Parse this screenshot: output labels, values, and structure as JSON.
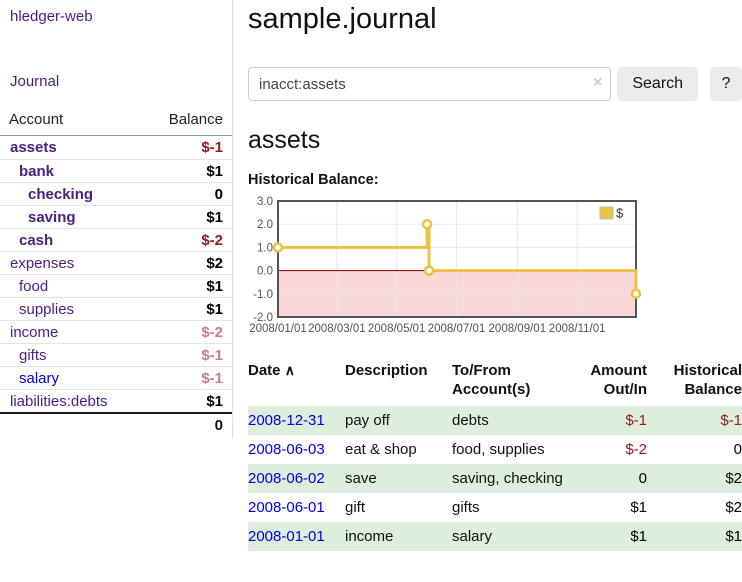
{
  "brand": "hledger-web",
  "nav": {
    "journal": "Journal"
  },
  "sidebar": {
    "header": {
      "account": "Account",
      "balance": "Balance"
    },
    "accounts": [
      {
        "name": "assets",
        "level": 0,
        "bold": true,
        "blue": false,
        "balance": "$-1",
        "tone": "neg"
      },
      {
        "name": "bank",
        "level": 1,
        "bold": true,
        "blue": false,
        "balance": "$1",
        "tone": ""
      },
      {
        "name": "checking",
        "level": 2,
        "bold": true,
        "blue": false,
        "balance": "0",
        "tone": ""
      },
      {
        "name": "saving",
        "level": 2,
        "bold": true,
        "blue": false,
        "balance": "$1",
        "tone": ""
      },
      {
        "name": "cash",
        "level": 1,
        "bold": true,
        "blue": false,
        "balance": "$-2",
        "tone": "neg"
      },
      {
        "name": "expenses",
        "level": 0,
        "bold": false,
        "blue": false,
        "balance": "$2",
        "tone": ""
      },
      {
        "name": "food",
        "level": 1,
        "bold": false,
        "blue": false,
        "balance": "$1",
        "tone": ""
      },
      {
        "name": "supplies",
        "level": 1,
        "bold": false,
        "blue": false,
        "balance": "$1",
        "tone": ""
      },
      {
        "name": "income",
        "level": 0,
        "bold": false,
        "blue": false,
        "balance": "$-2",
        "tone": "negsoft"
      },
      {
        "name": "gifts",
        "level": 1,
        "bold": false,
        "blue": false,
        "balance": "$-1",
        "tone": "negsoft"
      },
      {
        "name": "salary",
        "level": 1,
        "bold": false,
        "blue": true,
        "balance": "$-1",
        "tone": "negsoft"
      },
      {
        "name": "liabilities:debts",
        "level": 0,
        "bold": false,
        "blue": false,
        "balance": "$1",
        "tone": ""
      }
    ],
    "total": "0"
  },
  "header": {
    "title": "sample.journal"
  },
  "search": {
    "value": "inacct:assets",
    "clear_icon": "×",
    "button": "Search",
    "help": "?"
  },
  "account_page": {
    "heading": "assets",
    "chart_title": "Historical Balance:"
  },
  "chart_data": {
    "type": "line",
    "step": true,
    "title": "Historical Balance:",
    "x_start": "2008-01-01",
    "x_end": "2008-12-31",
    "ylim": [
      -2,
      3
    ],
    "grid": true,
    "legend": {
      "label": "$",
      "position": "top-right"
    },
    "colors": {
      "series": "#edc240",
      "negative_fill": "#fbd8d8",
      "zero_line": "#8b0000",
      "border": "#545454",
      "gridline": "#e8e8e8",
      "tick_text": "#545454"
    },
    "y_ticks": [
      {
        "v": 3,
        "label": "3.0"
      },
      {
        "v": 2,
        "label": "2.0"
      },
      {
        "v": 1,
        "label": "1.0"
      },
      {
        "v": 0,
        "label": "0.0"
      },
      {
        "v": -1,
        "label": "-1.0"
      },
      {
        "v": -2,
        "label": "-2.0"
      }
    ],
    "x_ticks": [
      {
        "date": "2008-01-01",
        "label": "2008/01/01"
      },
      {
        "date": "2008-03-01",
        "label": "2008/03/01"
      },
      {
        "date": "2008-05-01",
        "label": "2008/05/01"
      },
      {
        "date": "2008-07-01",
        "label": "2008/07/01"
      },
      {
        "date": "2008-09-01",
        "label": "2008/09/01"
      },
      {
        "date": "2008-11-01",
        "label": "2008/11/01"
      }
    ],
    "series": [
      {
        "name": "$",
        "points": [
          {
            "date": "2008-01-01",
            "value": 1
          },
          {
            "date": "2008-06-01",
            "value": 2
          },
          {
            "date": "2008-06-03",
            "value": 0
          },
          {
            "date": "2008-12-31",
            "value": -1
          }
        ]
      }
    ]
  },
  "register": {
    "headers": {
      "date": "Date",
      "sort_indicator": "∧",
      "description": "Description",
      "account": "To/From Account(s)",
      "amount": "Amount Out/In",
      "balance": "Historical Balance"
    },
    "rows": [
      {
        "date": "2008-12-31",
        "description": "pay off",
        "accounts": "debts",
        "amount": "$-1",
        "balance": "$-1"
      },
      {
        "date": "2008-06-03",
        "description": "eat & shop",
        "accounts": "food, supplies",
        "amount": "$-2",
        "balance": "0"
      },
      {
        "date": "2008-06-02",
        "description": "save",
        "accounts": "saving, checking",
        "amount": "0",
        "balance": "$2"
      },
      {
        "date": "2008-06-01",
        "description": "gift",
        "accounts": "gifts",
        "amount": "$1",
        "balance": "$2"
      },
      {
        "date": "2008-01-01",
        "description": "income",
        "accounts": "salary",
        "amount": "$1",
        "balance": "$1"
      }
    ]
  }
}
